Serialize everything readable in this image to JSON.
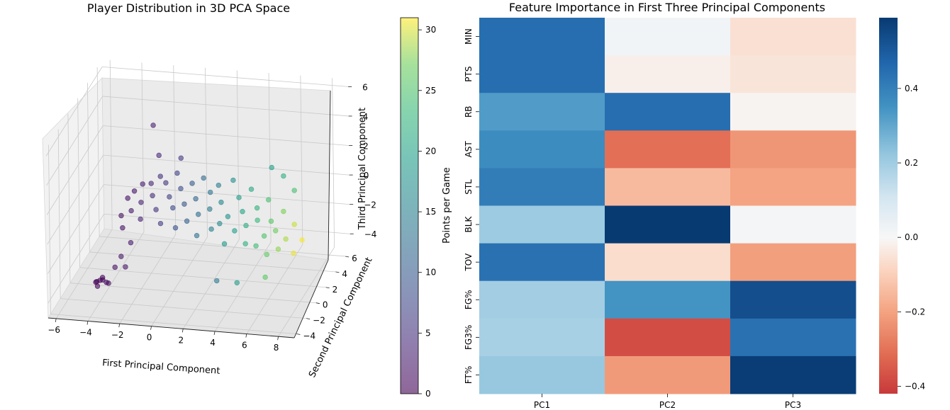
{
  "chart_data": [
    {
      "type": "scatter",
      "projection": "3d",
      "title": "Player Distribution in 3D PCA Space",
      "xlabel": "First Principal Component",
      "ylabel": "Second Principal Component",
      "zlabel": "Third Principal Component",
      "x_ticks": [
        "−6",
        "−4",
        "−2",
        "0",
        "2",
        "4",
        "6",
        "8"
      ],
      "y_ticks": [
        "−4",
        "−2",
        "0",
        "2",
        "4",
        "6"
      ],
      "z_ticks": [
        "−4",
        "−2",
        "0",
        "2",
        "4",
        "6"
      ],
      "xlim": [
        -6.5,
        9
      ],
      "ylim": [
        -4.5,
        7
      ],
      "zlim": [
        -5,
        6.5
      ],
      "grid": true,
      "colormap": "viridis",
      "marker_alpha": 0.6,
      "colorbar": {
        "label": "Points per Game",
        "ticks": [
          "0",
          "5",
          "10",
          "15",
          "20",
          "25",
          "30"
        ],
        "range": [
          0,
          31
        ]
      },
      "series": [
        {
          "note_points": "representative sample of the point cloud; colour encodes points per game",
          "points": [
            {
              "x": -4.5,
              "y": -1.0,
              "z": -4.2,
              "c": 0.3
            },
            {
              "x": -4.3,
              "y": -1.0,
              "z": -4.1,
              "c": 0.5
            },
            {
              "x": -4.6,
              "y": -0.9,
              "z": -4.3,
              "c": 0.2
            },
            {
              "x": -4.1,
              "y": -1.1,
              "z": -4.0,
              "c": 0.8
            },
            {
              "x": -4.4,
              "y": -1.2,
              "z": -4.4,
              "c": 0.4
            },
            {
              "x": -3.9,
              "y": -1.0,
              "z": -4.2,
              "c": 1.0
            },
            {
              "x": -4.2,
              "y": -0.8,
              "z": -4.0,
              "c": 0.6
            },
            {
              "x": -3.8,
              "y": -0.9,
              "z": -4.3,
              "c": 1.2
            },
            {
              "x": -3.5,
              "y": -0.5,
              "z": -3.4,
              "c": 1.8
            },
            {
              "x": -3.2,
              "y": -0.2,
              "z": -2.8,
              "c": 2.2
            },
            {
              "x": -3.0,
              "y": 0.0,
              "z": -3.6,
              "c": 2.0
            },
            {
              "x": -2.8,
              "y": 0.5,
              "z": -2.2,
              "c": 2.6
            },
            {
              "x": -3.4,
              "y": 0.8,
              "z": -1.4,
              "c": 1.6
            },
            {
              "x": -3.6,
              "y": 1.2,
              "z": -0.8,
              "c": 1.4
            },
            {
              "x": -3.3,
              "y": 1.6,
              "z": 0.2,
              "c": 1.5
            },
            {
              "x": -3.0,
              "y": 2.0,
              "z": 0.5,
              "c": 2.0
            },
            {
              "x": -2.6,
              "y": 2.4,
              "z": 0.8,
              "c": 2.8
            },
            {
              "x": -2.9,
              "y": 1.0,
              "z": -0.3,
              "c": 2.4
            },
            {
              "x": -2.4,
              "y": 1.4,
              "z": 0.1,
              "c": 3.2
            },
            {
              "x": -2.2,
              "y": 0.6,
              "z": -0.6,
              "c": 3.6
            },
            {
              "x": -2.0,
              "y": 2.2,
              "z": 1.0,
              "c": 3.8
            },
            {
              "x": -1.8,
              "y": 1.8,
              "z": 0.4,
              "c": 4.2
            },
            {
              "x": -1.6,
              "y": 2.8,
              "z": 1.2,
              "c": 4.6
            },
            {
              "x": -1.4,
              "y": 1.2,
              "z": -0.2,
              "c": 5.0
            },
            {
              "x": -1.2,
              "y": 2.6,
              "z": 0.9,
              "c": 5.6
            },
            {
              "x": -1.0,
              "y": 0.8,
              "z": -0.9,
              "c": 6.0
            },
            {
              "x": -0.8,
              "y": 2.0,
              "z": 0.3,
              "c": 6.5
            },
            {
              "x": -0.6,
              "y": 3.0,
              "z": 1.4,
              "c": 7.0
            },
            {
              "x": -0.4,
              "y": 1.4,
              "z": -0.1,
              "c": 7.6
            },
            {
              "x": -0.2,
              "y": 2.4,
              "z": 0.7,
              "c": 8.2
            },
            {
              "x": 0.0,
              "y": 0.6,
              "z": -1.0,
              "c": 8.8
            },
            {
              "x": 0.2,
              "y": 1.8,
              "z": 0.0,
              "c": 9.4
            },
            {
              "x": 0.4,
              "y": 2.8,
              "z": 0.9,
              "c": 10.0
            },
            {
              "x": 0.6,
              "y": 1.0,
              "z": -0.7,
              "c": 10.6
            },
            {
              "x": 0.8,
              "y": 2.2,
              "z": 0.2,
              "c": 11.2
            },
            {
              "x": 1.0,
              "y": 3.2,
              "z": 1.1,
              "c": 11.8
            },
            {
              "x": 1.2,
              "y": 1.4,
              "z": -0.4,
              "c": 12.4
            },
            {
              "x": 1.4,
              "y": 0.4,
              "z": -1.3,
              "c": 13.0
            },
            {
              "x": 1.6,
              "y": 2.6,
              "z": 0.5,
              "c": 13.6
            },
            {
              "x": 1.8,
              "y": 1.8,
              "z": -0.2,
              "c": 14.2
            },
            {
              "x": 2.0,
              "y": 3.0,
              "z": 0.8,
              "c": 14.8
            },
            {
              "x": 2.2,
              "y": 0.8,
              "z": -1.0,
              "c": 15.4
            },
            {
              "x": 2.4,
              "y": 2.2,
              "z": 0.1,
              "c": 16.0
            },
            {
              "x": 2.6,
              "y": 1.2,
              "z": -0.8,
              "c": 16.6
            },
            {
              "x": 2.8,
              "y": 3.4,
              "z": 1.0,
              "c": 17.2
            },
            {
              "x": 3.0,
              "y": 1.6,
              "z": -0.5,
              "c": 17.8
            },
            {
              "x": 3.2,
              "y": 0.2,
              "z": -1.6,
              "c": 18.4
            },
            {
              "x": 3.4,
              "y": 2.6,
              "z": 0.3,
              "c": 19.0
            },
            {
              "x": 3.6,
              "y": 1.0,
              "z": -1.1,
              "c": 19.6
            },
            {
              "x": 3.8,
              "y": 2.0,
              "z": -0.3,
              "c": 20.2
            },
            {
              "x": 4.0,
              "y": 3.2,
              "z": 0.6,
              "c": 20.8
            },
            {
              "x": 4.2,
              "y": 1.4,
              "z": -0.9,
              "c": 21.4
            },
            {
              "x": 4.4,
              "y": 0.6,
              "z": -1.7,
              "c": 22.0
            },
            {
              "x": 4.6,
              "y": 2.4,
              "z": -0.2,
              "c": 22.6
            },
            {
              "x": 4.8,
              "y": 1.8,
              "z": -0.7,
              "c": 23.2
            },
            {
              "x": 5.0,
              "y": 0.8,
              "z": -1.9,
              "c": 23.8
            },
            {
              "x": 5.2,
              "y": 2.8,
              "z": 0.2,
              "c": 24.4
            },
            {
              "x": 5.4,
              "y": 1.2,
              "z": -1.4,
              "c": 25.0
            },
            {
              "x": 5.6,
              "y": 2.0,
              "z": -0.8,
              "c": 25.6
            },
            {
              "x": 5.8,
              "y": 0.4,
              "z": -2.2,
              "c": 26.2
            },
            {
              "x": 6.0,
              "y": 1.6,
              "z": -1.2,
              "c": 26.8
            },
            {
              "x": 6.2,
              "y": 2.6,
              "z": -0.4,
              "c": 27.4
            },
            {
              "x": 6.4,
              "y": 0.8,
              "z": -2.0,
              "c": 28.0
            },
            {
              "x": 6.7,
              "y": 1.4,
              "z": -1.6,
              "c": 28.8
            },
            {
              "x": 7.0,
              "y": 2.2,
              "z": -1.0,
              "c": 29.6
            },
            {
              "x": 7.3,
              "y": 1.0,
              "z": -2.3,
              "c": 30.4
            },
            {
              "x": 7.6,
              "y": 1.8,
              "z": -1.8,
              "c": 30.8
            },
            {
              "x": 5.6,
              "y": 4.6,
              "z": 0.9,
              "c": 22.0
            },
            {
              "x": 6.4,
              "y": 4.2,
              "z": 0.2,
              "c": 24.5
            },
            {
              "x": 4.8,
              "y": 4.8,
              "z": 1.3,
              "c": 19.5
            },
            {
              "x": -2.2,
              "y": 3.4,
              "z": 4.3,
              "c": 3.0
            },
            {
              "x": -1.8,
              "y": 3.2,
              "z": 2.4,
              "c": 4.0
            },
            {
              "x": -0.6,
              "y": 3.8,
              "z": 2.0,
              "c": 6.0
            },
            {
              "x": 3.0,
              "y": -0.8,
              "z": -3.6,
              "c": 14.0
            },
            {
              "x": 4.4,
              "y": -1.2,
              "z": -3.4,
              "c": 19.0
            },
            {
              "x": 6.0,
              "y": -0.6,
              "z": -3.2,
              "c": 26.0
            }
          ]
        }
      ]
    },
    {
      "type": "heatmap",
      "title": "Feature Importance in First Three Principal Components",
      "columns": [
        "PC1",
        "PC2",
        "PC3"
      ],
      "rows": [
        "MIN",
        "PTS",
        "RB",
        "AST",
        "STL",
        "BLK",
        "TOV",
        "FG%",
        "FG3%",
        "FT%"
      ],
      "values": [
        [
          0.44,
          0.02,
          -0.06
        ],
        [
          0.44,
          -0.02,
          -0.05
        ],
        [
          0.32,
          0.44,
          -0.01
        ],
        [
          0.36,
          -0.31,
          -0.23
        ],
        [
          0.4,
          -0.15,
          -0.2
        ],
        [
          0.2,
          0.59,
          0.01
        ],
        [
          0.43,
          -0.07,
          -0.21
        ],
        [
          0.19,
          0.34,
          0.53
        ],
        [
          0.18,
          -0.38,
          0.43
        ],
        [
          0.21,
          -0.22,
          0.58
        ]
      ],
      "colormap": "RdBu",
      "colorbar": {
        "ticks": [
          "0.4",
          "0.2",
          "0.0",
          "−0.2",
          "−0.4"
        ],
        "range": [
          -0.42,
          0.59
        ]
      }
    }
  ]
}
